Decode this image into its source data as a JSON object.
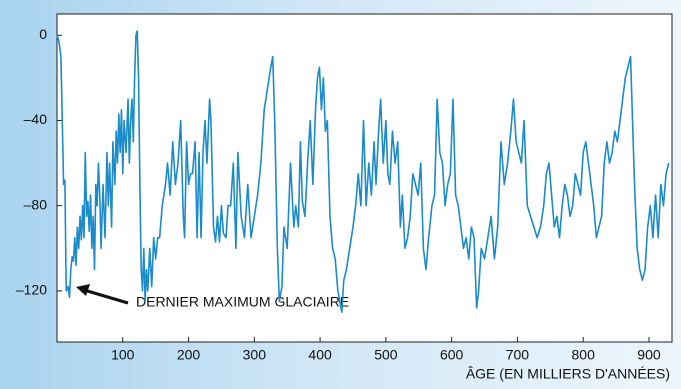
{
  "chart_data": {
    "type": "line",
    "x_label": "ÂGE (EN MILLIERS D'ANNÉES)",
    "annotation": "DERNIER MAXIMUM GLACIAIRE",
    "xlim": [
      0,
      935
    ],
    "ylim": [
      -144,
      10
    ],
    "xticks": [
      100,
      200,
      300,
      400,
      500,
      600,
      700,
      800,
      900
    ],
    "yticks": [
      0,
      {
        "value": -40,
        "label": "–40"
      },
      {
        "value": -80,
        "label": "–80"
      },
      {
        "value": -120,
        "label": "–120"
      }
    ],
    "x": [
      0,
      3,
      6,
      8,
      10,
      12,
      14,
      17,
      19,
      21,
      23,
      25,
      27,
      29,
      31,
      33,
      35,
      37,
      39,
      41,
      43,
      45,
      47,
      49,
      51,
      53,
      55,
      57,
      59,
      61,
      63,
      65,
      67,
      70,
      73,
      76,
      78,
      80,
      83,
      85,
      88,
      90,
      92,
      94,
      96,
      98,
      100,
      102,
      105,
      108,
      110,
      112,
      114,
      116,
      118,
      120,
      122,
      124,
      126,
      128,
      130,
      132,
      134,
      136,
      138,
      141,
      144,
      147,
      150,
      153,
      156,
      160,
      165,
      168,
      172,
      176,
      180,
      184,
      188,
      192,
      194,
      197,
      200,
      203,
      206,
      210,
      213,
      216,
      219,
      222,
      225,
      228,
      232,
      234,
      238,
      241,
      244,
      247,
      250,
      253,
      257,
      260,
      264,
      268,
      272,
      275,
      280,
      285,
      290,
      295,
      300,
      305,
      310,
      315,
      320,
      325,
      328,
      331,
      335,
      338,
      342,
      345,
      350,
      355,
      360,
      363,
      367,
      370,
      373,
      377,
      381,
      385,
      389,
      393,
      396,
      399,
      402,
      405,
      408,
      411,
      415,
      419,
      423,
      427,
      430,
      433,
      436,
      440,
      445,
      450,
      454,
      458,
      462,
      466,
      470,
      474,
      478,
      482,
      485,
      489,
      492,
      496,
      500,
      503,
      506,
      510,
      514,
      518,
      522,
      525,
      529,
      533,
      537,
      541,
      545,
      549,
      553,
      557,
      561,
      565,
      570,
      574,
      578,
      582,
      586,
      590,
      594,
      598,
      602,
      606,
      610,
      614,
      618,
      622,
      626,
      630,
      634,
      638,
      641,
      645,
      650,
      655,
      660,
      665,
      670,
      675,
      680,
      685,
      690,
      694,
      698,
      702,
      706,
      710,
      715,
      720,
      725,
      730,
      735,
      740,
      744,
      748,
      752,
      756,
      760,
      764,
      768,
      772,
      776,
      780,
      784,
      788,
      792,
      796,
      800,
      804,
      808,
      812,
      816,
      820,
      824,
      828,
      832,
      836,
      840,
      844,
      848,
      852,
      856,
      860,
      864,
      868,
      872,
      875,
      878,
      882,
      886,
      890,
      894,
      898,
      902,
      906,
      910,
      914,
      918,
      922,
      926,
      930
    ],
    "series": [
      {
        "color": "#1b8bc9",
        "values": [
          0,
          -3,
          -10,
          -40,
          -70,
          -68,
          -120,
          -118,
          -123,
          -110,
          -104,
          -106,
          -95,
          -108,
          -90,
          -100,
          -85,
          -96,
          -80,
          -95,
          -55,
          -85,
          -78,
          -92,
          -75,
          -100,
          -85,
          -110,
          -70,
          -80,
          -60,
          -75,
          -100,
          -70,
          -95,
          -55,
          -80,
          -60,
          -90,
          -50,
          -70,
          -45,
          -60,
          -37,
          -55,
          -35,
          -65,
          -40,
          -55,
          -30,
          -60,
          -40,
          -30,
          -50,
          -20,
          0,
          2,
          -20,
          -70,
          -110,
          -120,
          -100,
          -125,
          -110,
          -120,
          -100,
          -118,
          -95,
          -105,
          -95,
          -95,
          -80,
          -70,
          -60,
          -75,
          -50,
          -70,
          -60,
          -40,
          -85,
          -95,
          -50,
          -70,
          -65,
          -65,
          -50,
          -95,
          -55,
          -95,
          -55,
          -40,
          -60,
          -30,
          -40,
          -90,
          -97,
          -85,
          -97,
          -80,
          -93,
          -95,
          -80,
          -80,
          -60,
          -100,
          -55,
          -85,
          -95,
          -70,
          -95,
          -85,
          -75,
          -60,
          -35,
          -25,
          -15,
          -10,
          -40,
          -100,
          -125,
          -118,
          -90,
          -100,
          -60,
          -90,
          -80,
          -90,
          -50,
          -78,
          -85,
          -60,
          -40,
          -70,
          -35,
          -20,
          -15,
          -35,
          -20,
          -45,
          -40,
          -85,
          -100,
          -105,
          -120,
          -125,
          -130,
          -115,
          -110,
          -100,
          -90,
          -80,
          -65,
          -80,
          -40,
          -80,
          -60,
          -75,
          -50,
          -70,
          -45,
          -30,
          -60,
          -40,
          -65,
          -70,
          -45,
          -60,
          -50,
          -90,
          -75,
          -100,
          -95,
          -85,
          -65,
          -70,
          -75,
          -60,
          -100,
          -110,
          -95,
          -80,
          -75,
          -30,
          -55,
          -60,
          -80,
          -70,
          -65,
          -30,
          -75,
          -80,
          -90,
          -100,
          -95,
          -105,
          -90,
          -95,
          -128,
          -120,
          -100,
          -105,
          -95,
          -85,
          -105,
          -90,
          -50,
          -70,
          -60,
          -45,
          -30,
          -50,
          -55,
          -60,
          -40,
          -80,
          -85,
          -90,
          -95,
          -90,
          -80,
          -65,
          -60,
          -75,
          -90,
          -85,
          -95,
          -80,
          -70,
          -75,
          -85,
          -80,
          -65,
          -70,
          -75,
          -55,
          -50,
          -60,
          -70,
          -80,
          -95,
          -90,
          -85,
          -60,
          -50,
          -60,
          -55,
          -45,
          -50,
          -40,
          -30,
          -20,
          -15,
          -10,
          -40,
          -70,
          -100,
          -110,
          -115,
          -110,
          -90,
          -80,
          -95,
          -75,
          -95,
          -70,
          -80,
          -65,
          -60
        ]
      }
    ]
  }
}
